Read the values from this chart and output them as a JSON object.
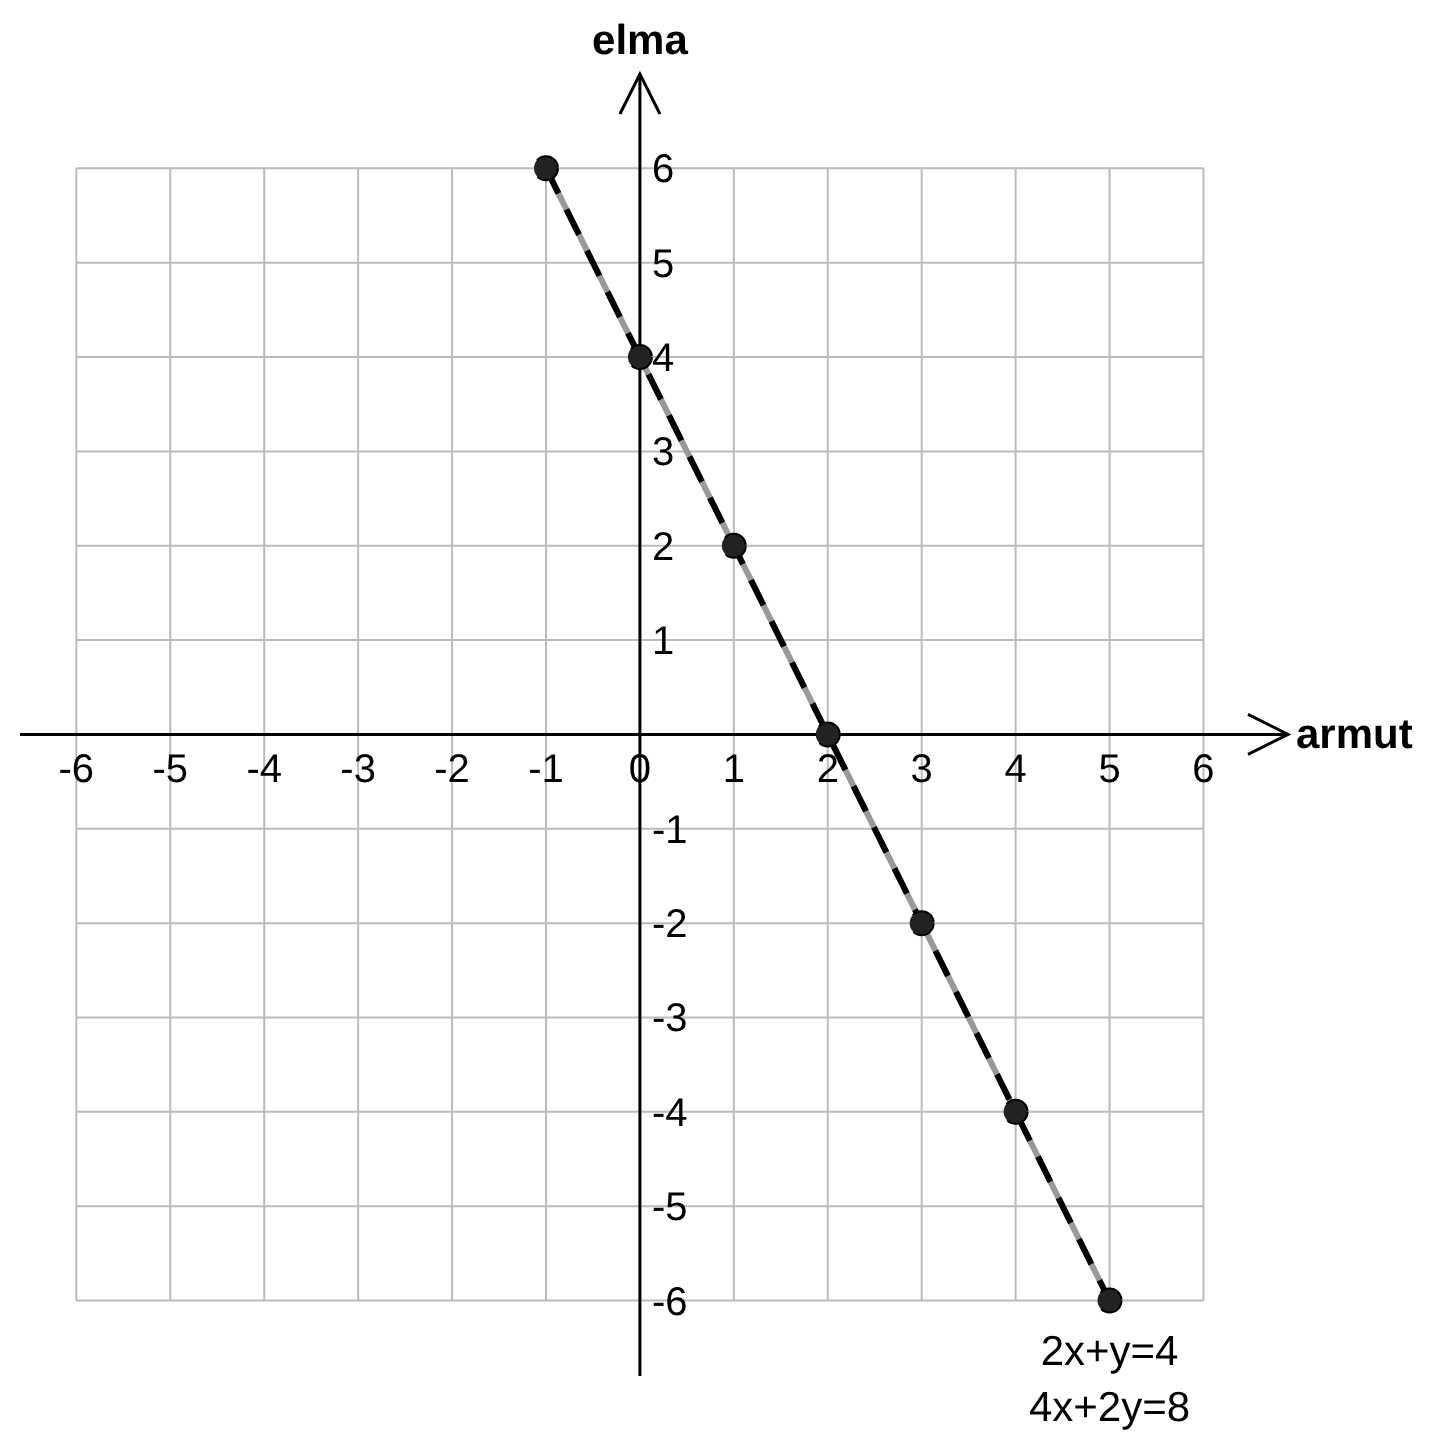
{
  "chart_data": {
    "type": "line",
    "xlabel": "armut",
    "ylabel": "elma",
    "x": [
      -1,
      0,
      1,
      2,
      3,
      4,
      5
    ],
    "series": [
      {
        "name": "2x+y=4",
        "color": "#999999",
        "values": [
          6,
          4,
          2,
          0,
          -2,
          -4,
          -6
        ],
        "line_style": "solid",
        "marker": "none"
      },
      {
        "name": "4x+2y=8",
        "color": "#000000",
        "values": [
          6,
          4,
          2,
          0,
          -2,
          -4,
          -6
        ],
        "line_style": "dashed",
        "marker": "circle"
      }
    ],
    "xlim": [
      -6.6,
      6.9
    ],
    "ylim": [
      -6.8,
      7
    ],
    "xticks": [
      -6,
      -5,
      -4,
      -3,
      -2,
      -1,
      0,
      1,
      2,
      3,
      4,
      5,
      6
    ],
    "yticks": [
      -6,
      -5,
      -4,
      -3,
      -2,
      -1,
      1,
      2,
      3,
      4,
      5,
      6
    ],
    "grid": true
  }
}
